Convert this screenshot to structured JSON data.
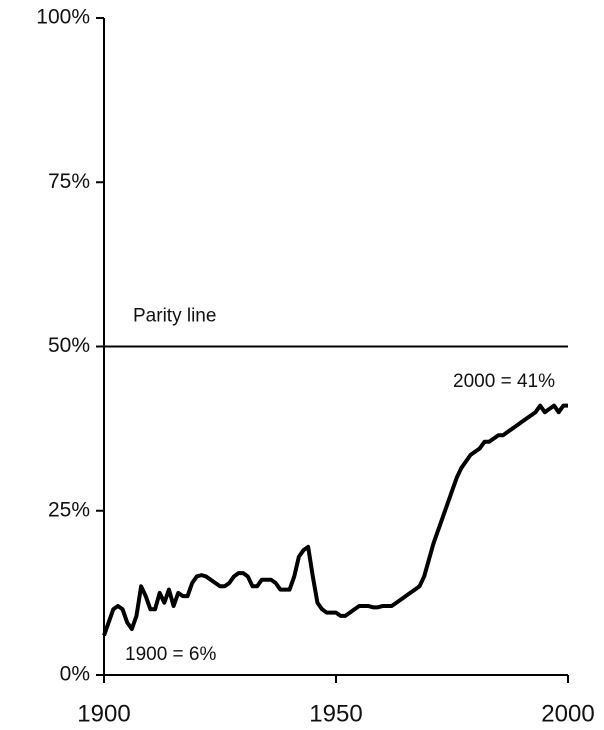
{
  "chart_data": {
    "type": "line",
    "x": [
      1900,
      1901,
      1902,
      1903,
      1904,
      1905,
      1906,
      1907,
      1908,
      1909,
      1910,
      1911,
      1912,
      1913,
      1914,
      1915,
      1916,
      1917,
      1918,
      1919,
      1920,
      1921,
      1922,
      1923,
      1924,
      1925,
      1926,
      1927,
      1928,
      1929,
      1930,
      1931,
      1932,
      1933,
      1934,
      1935,
      1936,
      1937,
      1938,
      1939,
      1940,
      1941,
      1942,
      1943,
      1944,
      1945,
      1946,
      1947,
      1948,
      1949,
      1950,
      1951,
      1952,
      1953,
      1954,
      1955,
      1956,
      1957,
      1958,
      1959,
      1960,
      1961,
      1962,
      1963,
      1964,
      1965,
      1966,
      1967,
      1968,
      1969,
      1970,
      1971,
      1972,
      1973,
      1974,
      1975,
      1976,
      1977,
      1978,
      1979,
      1980,
      1981,
      1982,
      1983,
      1984,
      1985,
      1986,
      1987,
      1988,
      1989,
      1990,
      1991,
      1992,
      1993,
      1994,
      1995,
      1996,
      1997,
      1998,
      1999,
      2000
    ],
    "series": [
      {
        "color": "#000000",
        "values": [
          6,
          8,
          10,
          10.5,
          10,
          8,
          7,
          9,
          13.5,
          12,
          10,
          10,
          12.5,
          11,
          13,
          10.5,
          12.5,
          12,
          12,
          14,
          15,
          15.2,
          15,
          14.5,
          14,
          13.5,
          13.5,
          14,
          15,
          15.5,
          15.5,
          15,
          13.5,
          13.5,
          14.5,
          14.5,
          14.5,
          14,
          13,
          13,
          13,
          15,
          18,
          19,
          19.5,
          15,
          11,
          10,
          9.5,
          9.5,
          9.5,
          9,
          9,
          9.5,
          10,
          10.5,
          10.5,
          10.5,
          10.3,
          10.3,
          10.5,
          10.5,
          10.5,
          11,
          11.5,
          12,
          12.5,
          13,
          13.5,
          15,
          17.5,
          20,
          22,
          24,
          26,
          28,
          30,
          31.5,
          32.5,
          33.5,
          34,
          34.5,
          35.5,
          35.5,
          36,
          36.5,
          36.5,
          37,
          37.5,
          38,
          38.5,
          39,
          39.5,
          40,
          41,
          40,
          40.5,
          41,
          40,
          41,
          41
        ]
      }
    ],
    "xlim": [
      1900,
      2000
    ],
    "xticks": [
      1900,
      1950,
      2000
    ],
    "ylim": [
      0,
      100
    ],
    "yticks": [
      {
        "value": 0,
        "label": "0%"
      },
      {
        "value": 25,
        "label": "25%"
      },
      {
        "value": 50,
        "label": "50%"
      },
      {
        "value": 75,
        "label": "75%"
      },
      {
        "value": 100,
        "label": "100%"
      }
    ],
    "reference_lines": [
      {
        "value": 50,
        "label": "Parity line"
      }
    ],
    "annotations": [
      "2000 = 41%",
      "1900 = 6%"
    ]
  }
}
